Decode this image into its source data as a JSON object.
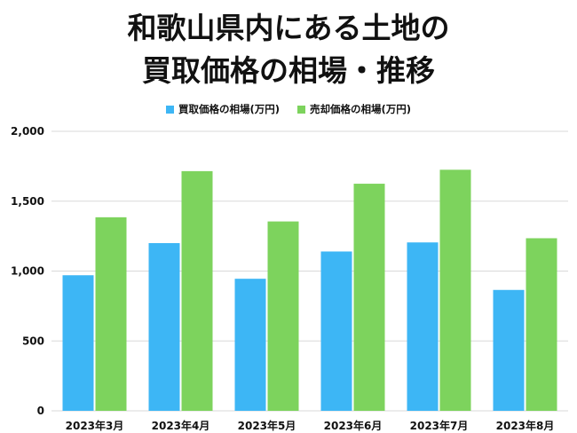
{
  "title_lines": [
    "和歌山県内にある土地の",
    "買取価格の相場・推移"
  ],
  "colors": {
    "buy": "#3db6f5",
    "sell": "#7dd35d",
    "grid": "#d9d9d9"
  },
  "chart_data": {
    "type": "bar",
    "title": "和歌山県内にある土地の買取価格の相場・推移",
    "categories": [
      "2023年3月",
      "2023年4月",
      "2023年5月",
      "2023年6月",
      "2023年7月",
      "2023年8月"
    ],
    "series": [
      {
        "name": "買取価格の相場(万円)",
        "values": [
          970,
          1200,
          945,
          1140,
          1205,
          865
        ]
      },
      {
        "name": "売却価格の相場(万円)",
        "values": [
          1385,
          1715,
          1355,
          1625,
          1725,
          1235
        ]
      }
    ],
    "ylim": [
      0,
      2000
    ],
    "yticks": [
      "0",
      "500",
      "1,000",
      "1,500",
      "2,000"
    ],
    "ytick_values": [
      0,
      500,
      1000,
      1500,
      2000
    ],
    "xlabel": "",
    "ylabel": "",
    "grid": true,
    "legend": "top-center"
  }
}
